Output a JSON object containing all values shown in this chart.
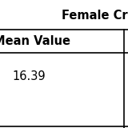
{
  "header_text": "Female Cr",
  "col_header": "Mean Value",
  "value": "16.39",
  "bg_color": "#ffffff",
  "text_color": "#000000",
  "header_fontsize": 10.5,
  "cell_fontsize": 10.5,
  "border_color": "#000000",
  "fig_width": 1.6,
  "fig_height": 1.6,
  "dpi": 100
}
